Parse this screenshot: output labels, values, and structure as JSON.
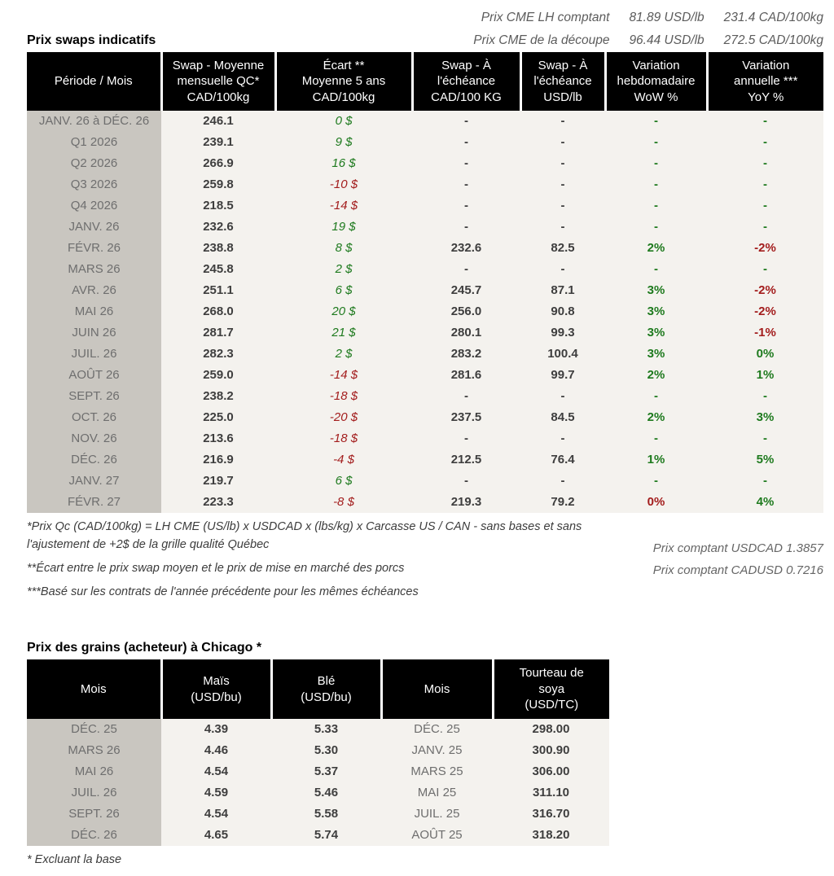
{
  "colors": {
    "green": "#1e7a1e",
    "red": "#a31d1d",
    "header_bg": "#000000",
    "gray_col": "#c9c6c0",
    "row_bg": "#f4f2ee"
  },
  "top": {
    "lines": [
      {
        "label": "Prix CME LH comptant",
        "usd": "81.89 USD/lb",
        "cad": "231.4 CAD/100kg"
      },
      {
        "label": "Prix CME de la découpe",
        "usd": "96.44 USD/lb",
        "cad": "272.5 CAD/100kg"
      }
    ]
  },
  "swaps": {
    "title": "Prix swaps indicatifs",
    "headers": [
      "Période / Mois",
      "Swap - Moyenne\nmensuelle QC*\nCAD/100kg",
      "Écart **\nMoyenne 5 ans\nCAD/100kg",
      "Swap - À\nl'échéance\nCAD/100 KG",
      "Swap - À\nl'échéance\nUSD/lb",
      "Variation\nhebdomadaire\nWoW %",
      "Variation\nannuelle ***\nYoY %"
    ],
    "rows": [
      {
        "period": "JANV. 26 à  DÉC. 26",
        "avg": "246.1",
        "ecart": "0 $",
        "ecart_sign": "pos",
        "cad": "-",
        "usd": "-",
        "wow": "-",
        "wow_sign": "pos",
        "yoy": "-",
        "yoy_sign": "pos"
      },
      {
        "period": "Q1 2026",
        "avg": "239.1",
        "ecart": "9 $",
        "ecart_sign": "pos",
        "cad": "-",
        "usd": "-",
        "wow": "-",
        "wow_sign": "pos",
        "yoy": "-",
        "yoy_sign": "pos"
      },
      {
        "period": "Q2 2026",
        "avg": "266.9",
        "ecart": "16 $",
        "ecart_sign": "pos",
        "cad": "-",
        "usd": "-",
        "wow": "-",
        "wow_sign": "pos",
        "yoy": "-",
        "yoy_sign": "pos"
      },
      {
        "period": "Q3 2026",
        "avg": "259.8",
        "ecart": "-10 $",
        "ecart_sign": "neg",
        "cad": "-",
        "usd": "-",
        "wow": "-",
        "wow_sign": "pos",
        "yoy": "-",
        "yoy_sign": "pos"
      },
      {
        "period": "Q4 2026",
        "avg": "218.5",
        "ecart": "-14 $",
        "ecart_sign": "neg",
        "cad": "-",
        "usd": "-",
        "wow": "-",
        "wow_sign": "pos",
        "yoy": "-",
        "yoy_sign": "pos"
      },
      {
        "period": "JANV. 26",
        "avg": "232.6",
        "ecart": "19 $",
        "ecart_sign": "pos",
        "cad": "-",
        "usd": "-",
        "wow": "-",
        "wow_sign": "pos",
        "yoy": "-",
        "yoy_sign": "pos"
      },
      {
        "period": "FÉVR. 26",
        "avg": "238.8",
        "ecart": "8 $",
        "ecart_sign": "pos",
        "cad": "232.6",
        "usd": "82.5",
        "wow": "2%",
        "wow_sign": "pos",
        "yoy": "-2%",
        "yoy_sign": "neg"
      },
      {
        "period": "MARS 26",
        "avg": "245.8",
        "ecart": "2 $",
        "ecart_sign": "pos",
        "cad": "-",
        "usd": "-",
        "wow": "-",
        "wow_sign": "pos",
        "yoy": "-",
        "yoy_sign": "pos"
      },
      {
        "period": "AVR. 26",
        "avg": "251.1",
        "ecart": "6 $",
        "ecart_sign": "pos",
        "cad": "245.7",
        "usd": "87.1",
        "wow": "3%",
        "wow_sign": "pos",
        "yoy": "-2%",
        "yoy_sign": "neg"
      },
      {
        "period": "MAI 26",
        "avg": "268.0",
        "ecart": "20 $",
        "ecart_sign": "pos",
        "cad": "256.0",
        "usd": "90.8",
        "wow": "3%",
        "wow_sign": "pos",
        "yoy": "-2%",
        "yoy_sign": "neg"
      },
      {
        "period": "JUIN 26",
        "avg": "281.7",
        "ecart": "21 $",
        "ecart_sign": "pos",
        "cad": "280.1",
        "usd": "99.3",
        "wow": "3%",
        "wow_sign": "pos",
        "yoy": "-1%",
        "yoy_sign": "neg"
      },
      {
        "period": "JUIL. 26",
        "avg": "282.3",
        "ecart": "2 $",
        "ecart_sign": "pos",
        "cad": "283.2",
        "usd": "100.4",
        "wow": "3%",
        "wow_sign": "pos",
        "yoy": "0%",
        "yoy_sign": "pos"
      },
      {
        "period": "AOÛT 26",
        "avg": "259.0",
        "ecart": "-14 $",
        "ecart_sign": "neg",
        "cad": "281.6",
        "usd": "99.7",
        "wow": "2%",
        "wow_sign": "pos",
        "yoy": "1%",
        "yoy_sign": "pos"
      },
      {
        "period": "SEPT. 26",
        "avg": "238.2",
        "ecart": "-18 $",
        "ecart_sign": "neg",
        "cad": "-",
        "usd": "-",
        "wow": "-",
        "wow_sign": "pos",
        "yoy": "-",
        "yoy_sign": "pos"
      },
      {
        "period": "OCT. 26",
        "avg": "225.0",
        "ecart": "-20 $",
        "ecart_sign": "neg",
        "cad": "237.5",
        "usd": "84.5",
        "wow": "2%",
        "wow_sign": "pos",
        "yoy": "3%",
        "yoy_sign": "pos"
      },
      {
        "period": "NOV. 26",
        "avg": "213.6",
        "ecart": "-18 $",
        "ecart_sign": "neg",
        "cad": "-",
        "usd": "-",
        "wow": "-",
        "wow_sign": "pos",
        "yoy": "-",
        "yoy_sign": "pos"
      },
      {
        "period": "DÉC. 26",
        "avg": "216.9",
        "ecart": "-4 $",
        "ecart_sign": "neg",
        "cad": "212.5",
        "usd": "76.4",
        "wow": "1%",
        "wow_sign": "pos",
        "yoy": "5%",
        "yoy_sign": "pos"
      },
      {
        "period": "JANV. 27",
        "avg": "219.7",
        "ecart": "6 $",
        "ecart_sign": "pos",
        "cad": "-",
        "usd": "-",
        "wow": "-",
        "wow_sign": "pos",
        "yoy": "-",
        "yoy_sign": "pos"
      },
      {
        "period": "FÉVR. 27",
        "avg": "223.3",
        "ecart": "-8 $",
        "ecart_sign": "neg",
        "cad": "219.3",
        "usd": "79.2",
        "wow": "0%",
        "wow_sign": "neg",
        "yoy": "4%",
        "yoy_sign": "pos"
      }
    ],
    "footnotes_left": [
      "*Prix Qc (CAD/100kg) = LH CME (US/lb) x USDCAD x (lbs/kg) x Carcasse US / CAN - sans bases et sans l'ajustement de +2$ de la grille qualité Québec",
      "**Écart entre le prix swap moyen et le prix de mise en marché des porcs",
      "***Basé sur les contrats de l'année précédente pour les mêmes échéances"
    ],
    "footnotes_right": [
      "Prix comptant USDCAD 1.3857",
      "Prix comptant CADUSD 0.7216"
    ]
  },
  "grains": {
    "title": "Prix des grains (acheteur) à Chicago *",
    "headers": [
      "Mois",
      "Maïs\n(USD/bu)",
      "Blé\n(USD/bu)",
      "Mois",
      "Tourteau de\nsoya\n(USD/TC)"
    ],
    "rows": [
      {
        "mois": "DÉC. 25",
        "mais": "4.39",
        "ble": "5.33",
        "mois2": "DÉC. 25",
        "tourteau": "298.00"
      },
      {
        "mois": "MARS 26",
        "mais": "4.46",
        "ble": "5.30",
        "mois2": "JANV. 25",
        "tourteau": "300.90"
      },
      {
        "mois": "MAI 26",
        "mais": "4.54",
        "ble": "5.37",
        "mois2": "MARS 25",
        "tourteau": "306.00"
      },
      {
        "mois": "JUIL. 26",
        "mais": "4.59",
        "ble": "5.46",
        "mois2": "MAI 25",
        "tourteau": "311.10"
      },
      {
        "mois": "SEPT. 26",
        "mais": "4.54",
        "ble": "5.58",
        "mois2": "JUIL. 25",
        "tourteau": "316.70"
      },
      {
        "mois": "DÉC. 26",
        "mais": "4.65",
        "ble": "5.74",
        "mois2": "AOÛT 25",
        "tourteau": "318.20"
      }
    ],
    "footnote": "* Excluant la base"
  }
}
